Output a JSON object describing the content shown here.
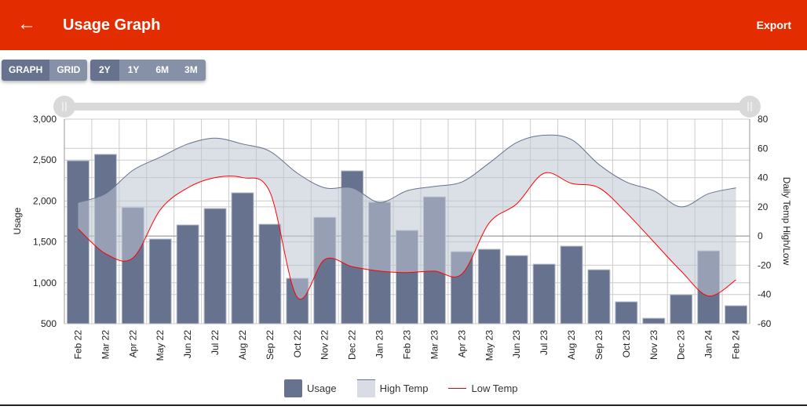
{
  "header": {
    "title": "Usage Graph",
    "back_icon": "arrow-left-icon",
    "export_label": "Export"
  },
  "view_toggle": [
    "GRAPH",
    "GRID"
  ],
  "range_toggle": [
    "2Y",
    "1Y",
    "6M",
    "3M"
  ],
  "colors": {
    "header": "#e32c00",
    "bar": "#66728e",
    "high_fill": "#d9dce4",
    "high_line": "#66728e",
    "low_line": "#ff0000"
  },
  "chart_data": {
    "type": "bar",
    "categories": [
      "Feb 22",
      "Mar 22",
      "Apr 22",
      "May 22",
      "Jun 22",
      "Jul 22",
      "Aug 22",
      "Sep 22",
      "Oct 22",
      "Nov 22",
      "Dec 22",
      "Jan 23",
      "Feb 23",
      "Mar 23",
      "Apr 23",
      "May 23",
      "Jun 23",
      "Jul 23",
      "Aug 23",
      "Sep 23",
      "Oct 23",
      "Nov 23",
      "Dec 23",
      "Jan 24",
      "Feb 24"
    ],
    "series": [
      {
        "name": "Usage",
        "type": "bar",
        "axis": "left",
        "values": [
          2492,
          2570,
          1920,
          1535,
          1707,
          1908,
          2100,
          1716,
          1055,
          1800,
          2368,
          1985,
          1640,
          2050,
          1380,
          1410,
          1333,
          1228,
          1448,
          1160,
          768,
          567,
          855,
          1390,
          720
        ]
      },
      {
        "name": "High Temp",
        "type": "area",
        "axis": "right",
        "values": [
          23,
          29,
          45,
          54,
          63,
          67,
          63,
          58,
          43,
          33,
          33,
          23,
          31,
          34,
          37,
          50,
          64,
          69,
          66,
          49,
          37,
          31,
          20,
          29,
          33
        ]
      },
      {
        "name": "Low Temp",
        "type": "line",
        "axis": "right",
        "values": [
          5,
          -12,
          -15,
          18,
          33,
          40,
          40,
          30,
          -42,
          -16,
          -21,
          -24,
          -25,
          -24,
          -26,
          9,
          22,
          43,
          36,
          33,
          16,
          -4,
          -24,
          -41,
          -30
        ]
      }
    ],
    "ylabel": "Usage",
    "y2label": "Daily Temp High/Low",
    "ylim": [
      500,
      3000
    ],
    "y2lim": [
      -60,
      80
    ],
    "yticks": [
      "500",
      "1,000",
      "1,500",
      "2,000",
      "2,500",
      "3,000"
    ],
    "y2ticks": [
      "-60",
      "-40",
      "-20",
      "0",
      "20",
      "40",
      "60",
      "80"
    ],
    "grid": true,
    "legend": "bottom"
  }
}
